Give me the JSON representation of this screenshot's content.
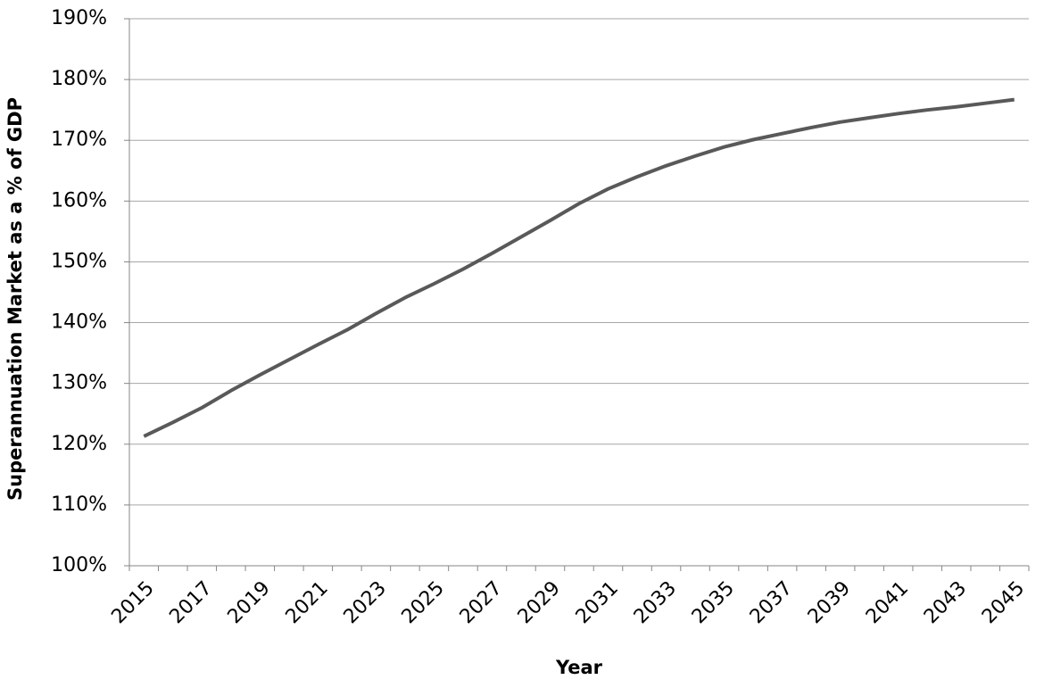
{
  "chart_data": {
    "type": "line",
    "y_label": "Superannuation Market as a % of GDP",
    "x_label": "Year",
    "categories": [
      "2015",
      null,
      "2017",
      null,
      "2019",
      null,
      "2021",
      null,
      "2023",
      null,
      "2025",
      null,
      "2027",
      null,
      "2029",
      null,
      "2031",
      null,
      "2033",
      null,
      "2035",
      null,
      "2037",
      null,
      "2039",
      null,
      "2041",
      null,
      "2043",
      null,
      "2045"
    ],
    "series": [
      {
        "name": "Superannuation Market as a % of GDP",
        "color": "#595959",
        "values": [
          121.3,
          123.6,
          126.0,
          128.8,
          131.4,
          133.9,
          136.4,
          138.8,
          141.5,
          144.1,
          146.4,
          148.8,
          151.4,
          154.1,
          156.8,
          159.6,
          162.0,
          164.0,
          165.8,
          167.4,
          168.9,
          170.1,
          171.1,
          172.1,
          173.0,
          173.7,
          174.4,
          175.0,
          175.5,
          176.1,
          176.7
        ]
      }
    ],
    "ylim": [
      100,
      190
    ],
    "yticks": [
      {
        "value": 100,
        "label": "100%"
      },
      {
        "value": 110,
        "label": "110%"
      },
      {
        "value": 120,
        "label": "120%"
      },
      {
        "value": 130,
        "label": "130%"
      },
      {
        "value": 140,
        "label": "140%"
      },
      {
        "value": 150,
        "label": "150%"
      },
      {
        "value": 160,
        "label": "160%"
      },
      {
        "value": 170,
        "label": "170%"
      },
      {
        "value": 180,
        "label": "180%"
      },
      {
        "value": 190,
        "label": "190%"
      }
    ],
    "grid": true
  }
}
